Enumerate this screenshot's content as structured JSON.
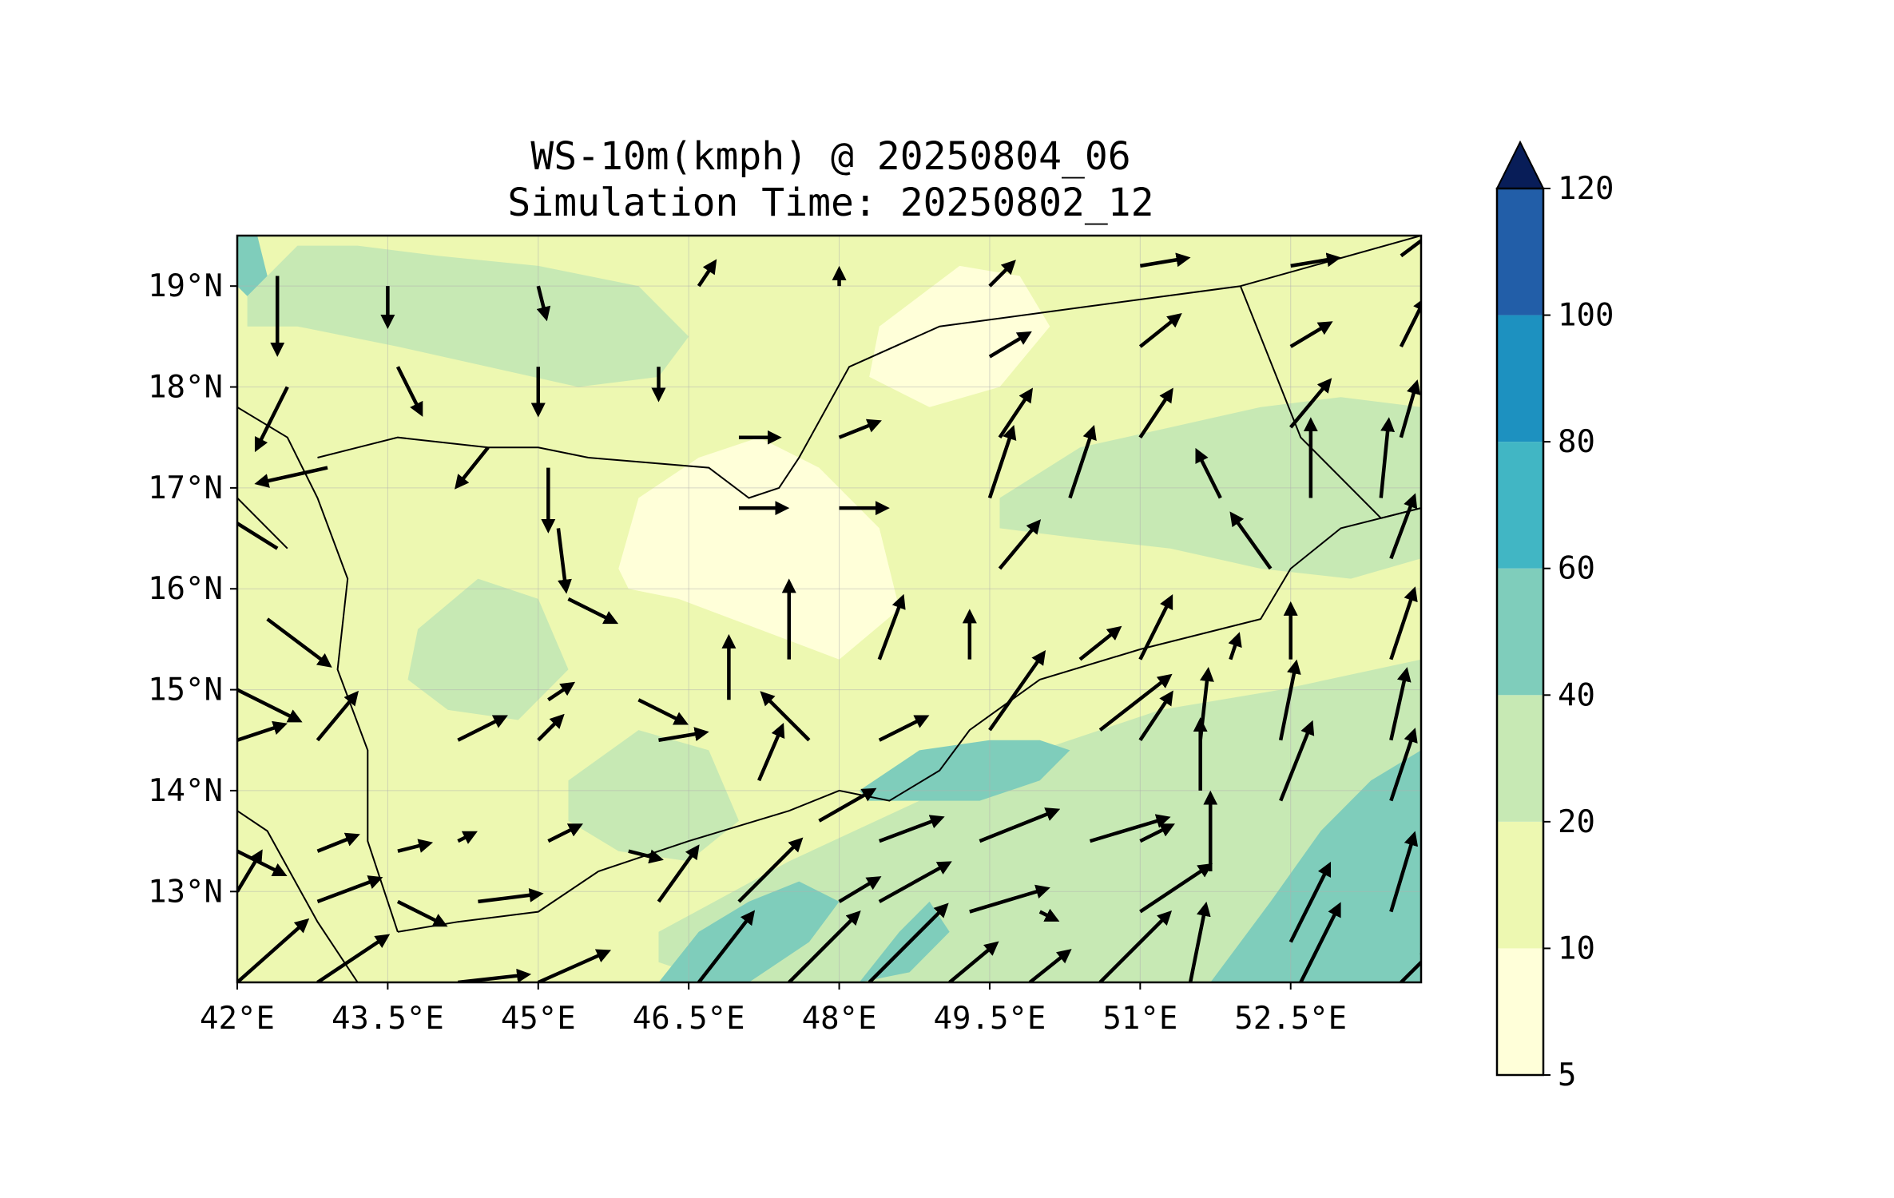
{
  "title": {
    "line1": "WS-10m(kmph) @ 20250804_06",
    "line2": "Simulation Time: 20250802_12"
  },
  "map": {
    "lon_range": [
      42.0,
      53.8
    ],
    "lat_range": [
      12.1,
      19.5
    ],
    "x_ticks": [
      {
        "value": 42.0,
        "label": "42°E"
      },
      {
        "value": 43.5,
        "label": "43.5°E"
      },
      {
        "value": 45.0,
        "label": "45°E"
      },
      {
        "value": 46.5,
        "label": "46.5°E"
      },
      {
        "value": 48.0,
        "label": "48°E"
      },
      {
        "value": 49.5,
        "label": "49.5°E"
      },
      {
        "value": 51.0,
        "label": "51°E"
      },
      {
        "value": 52.5,
        "label": "52.5°E"
      }
    ],
    "y_ticks": [
      {
        "value": 13,
        "label": "13°N"
      },
      {
        "value": 14,
        "label": "14°N"
      },
      {
        "value": 15,
        "label": "15°N"
      },
      {
        "value": 16,
        "label": "16°N"
      },
      {
        "value": 17,
        "label": "17°N"
      },
      {
        "value": 18,
        "label": "18°N"
      },
      {
        "value": 19,
        "label": "19°N"
      }
    ],
    "grid": true
  },
  "colorbar": {
    "levels": [
      5,
      10,
      20,
      40,
      60,
      80,
      100,
      120
    ],
    "labels": [
      "5",
      "10",
      "20",
      "40",
      "60",
      "80",
      "100",
      "120"
    ],
    "colors": [
      "#ffffd9",
      "#edf8b1",
      "#c7e9b4",
      "#7fcdbb",
      "#41b6c4",
      "#1d91c0",
      "#225ea8",
      "#253494"
    ],
    "extend_color": "#081d58",
    "extend": "max"
  },
  "colors": {
    "land_base": "#edf8b1",
    "calm": "#ffffd9",
    "moderate": "#c7e9b4",
    "strong": "#7fcdbb",
    "border": "#000000",
    "arrow": "#000000"
  },
  "chart_data": {
    "type": "heatmap",
    "title": "WS-10m(kmph) @ 20250804_06",
    "subtitle": "Simulation Time: 20250802_12",
    "variable": "10 m wind speed",
    "units": "kmph",
    "xlim": [
      42.0,
      53.8
    ],
    "ylim": [
      12.1,
      19.5
    ],
    "levels": [
      5,
      10,
      20,
      40,
      60,
      80,
      100,
      120
    ],
    "speed_regions": [
      {
        "range": "5-10",
        "lon": [
          45.8,
          46.0,
          46.6,
          47.2,
          47.8,
          48.4,
          48.6,
          48.0,
          47.2,
          46.4,
          45.9
        ],
        "lat": [
          16.2,
          16.9,
          17.3,
          17.5,
          17.2,
          16.6,
          15.8,
          15.3,
          15.6,
          15.9,
          16.0
        ]
      },
      {
        "range": "5-10",
        "lon": [
          48.4,
          49.2,
          49.8,
          50.1,
          49.6,
          48.9,
          48.3
        ],
        "lat": [
          18.6,
          19.2,
          19.1,
          18.6,
          18.0,
          17.8,
          18.1
        ]
      },
      {
        "range": "20-40",
        "lon": [
          42.1,
          42.6,
          43.2,
          44.0,
          45.0,
          46.0,
          46.5,
          46.2,
          45.4,
          44.5,
          43.6,
          42.6,
          42.1
        ],
        "lat": [
          18.9,
          19.4,
          19.4,
          19.3,
          19.2,
          19.0,
          18.5,
          18.1,
          18.0,
          18.2,
          18.4,
          18.6,
          18.6
        ]
      },
      {
        "range": "20-40",
        "lon": [
          49.6,
          50.4,
          51.3,
          52.2,
          53.0,
          53.8,
          53.8,
          53.1,
          52.2,
          51.3,
          50.4,
          49.6
        ],
        "lat": [
          16.9,
          17.4,
          17.6,
          17.8,
          17.9,
          17.8,
          16.3,
          16.1,
          16.2,
          16.4,
          16.5,
          16.6
        ]
      },
      {
        "range": "20-40",
        "lon": [
          43.8,
          44.4,
          45.0,
          45.3,
          44.8,
          44.1,
          43.7
        ],
        "lat": [
          15.6,
          16.1,
          15.9,
          15.2,
          14.7,
          14.8,
          15.1
        ]
      },
      {
        "range": "20-40",
        "lon": [
          45.3,
          46.0,
          46.7,
          47.0,
          46.5,
          45.8,
          45.3
        ],
        "lat": [
          14.1,
          14.6,
          14.4,
          13.7,
          13.3,
          13.4,
          13.7
        ]
      },
      {
        "range": "20-40",
        "lon": [
          46.2,
          47.5,
          48.8,
          50.0,
          51.2,
          52.4,
          53.8,
          53.8,
          52.5,
          51.0,
          49.5,
          48.0,
          46.8,
          46.2
        ],
        "lat": [
          12.6,
          13.3,
          13.9,
          14.4,
          14.8,
          15.0,
          15.3,
          12.1,
          12.1,
          12.1,
          12.1,
          12.1,
          12.1,
          12.3
        ]
      },
      {
        "range": "40-60",
        "lon": [
          46.2,
          46.6,
          47.1,
          47.6,
          48.0,
          47.7,
          47.1,
          46.4,
          46.0
        ],
        "lat": [
          12.1,
          12.6,
          12.9,
          13.1,
          12.9,
          12.5,
          12.1,
          12.1,
          12.1
        ]
      },
      {
        "range": "40-60",
        "lon": [
          48.2,
          48.6,
          48.9,
          49.1,
          48.7,
          48.2,
          47.9
        ],
        "lat": [
          12.1,
          12.6,
          12.9,
          12.6,
          12.2,
          12.1,
          12.1
        ]
      },
      {
        "range": "40-60",
        "lon": [
          48.2,
          48.8,
          49.5,
          50.0,
          50.3,
          50.0,
          49.4,
          48.8,
          48.3
        ],
        "lat": [
          14.0,
          14.4,
          14.5,
          14.5,
          14.4,
          14.1,
          13.9,
          13.9,
          13.9
        ]
      },
      {
        "range": "40-60",
        "lon": [
          51.7,
          52.3,
          52.8,
          53.3,
          53.8,
          53.8,
          53.2,
          52.5,
          51.9,
          51.7
        ],
        "lat": [
          12.1,
          12.9,
          13.6,
          14.1,
          14.4,
          12.1,
          12.1,
          12.1,
          12.1,
          12.1
        ]
      },
      {
        "range": "40-60",
        "lon": [
          42.0,
          42.2,
          42.3,
          42.1,
          42.0
        ],
        "lat": [
          19.5,
          19.5,
          19.1,
          18.9,
          19.0
        ]
      }
    ],
    "wind_vectors": [
      {
        "lon": 42.4,
        "lat": 19.1,
        "u": 0.0,
        "v": -1.0
      },
      {
        "lon": 43.5,
        "lat": 19.0,
        "u": 0.0,
        "v": -0.5
      },
      {
        "lon": 45.0,
        "lat": 19.0,
        "u": 0.1,
        "v": -0.4
      },
      {
        "lon": 46.6,
        "lat": 19.0,
        "u": 0.2,
        "v": 0.3
      },
      {
        "lon": 48.0,
        "lat": 19.0,
        "u": 0.0,
        "v": 0.2
      },
      {
        "lon": 49.5,
        "lat": 19.0,
        "u": 0.3,
        "v": 0.3
      },
      {
        "lon": 51.0,
        "lat": 19.2,
        "u": 0.6,
        "v": 0.1
      },
      {
        "lon": 52.5,
        "lat": 19.2,
        "u": 0.6,
        "v": 0.1
      },
      {
        "lon": 53.6,
        "lat": 19.3,
        "u": 0.4,
        "v": 0.3
      },
      {
        "lon": 42.5,
        "lat": 18.0,
        "u": -0.4,
        "v": -0.8
      },
      {
        "lon": 43.6,
        "lat": 18.2,
        "u": 0.3,
        "v": -0.6
      },
      {
        "lon": 45.0,
        "lat": 18.2,
        "u": 0.0,
        "v": -0.6
      },
      {
        "lon": 46.2,
        "lat": 18.2,
        "u": 0.0,
        "v": -0.4
      },
      {
        "lon": 49.5,
        "lat": 18.3,
        "u": 0.5,
        "v": 0.3
      },
      {
        "lon": 51.0,
        "lat": 18.4,
        "u": 0.5,
        "v": 0.4
      },
      {
        "lon": 52.5,
        "lat": 18.4,
        "u": 0.5,
        "v": 0.3
      },
      {
        "lon": 53.6,
        "lat": 18.4,
        "u": 0.3,
        "v": 0.6
      },
      {
        "lon": 42.9,
        "lat": 17.2,
        "u": -0.9,
        "v": -0.2
      },
      {
        "lon": 44.5,
        "lat": 17.4,
        "u": -0.4,
        "v": -0.5
      },
      {
        "lon": 45.1,
        "lat": 17.2,
        "u": 0.0,
        "v": -0.8
      },
      {
        "lon": 47.0,
        "lat": 17.5,
        "u": 0.5,
        "v": 0.0
      },
      {
        "lon": 48.0,
        "lat": 17.5,
        "u": 0.5,
        "v": 0.2
      },
      {
        "lon": 49.6,
        "lat": 17.5,
        "u": 0.4,
        "v": 0.6
      },
      {
        "lon": 51.0,
        "lat": 17.5,
        "u": 0.4,
        "v": 0.6
      },
      {
        "lon": 52.5,
        "lat": 17.6,
        "u": 0.5,
        "v": 0.6
      },
      {
        "lon": 53.6,
        "lat": 17.5,
        "u": 0.2,
        "v": 0.7
      },
      {
        "lon": 49.5,
        "lat": 16.9,
        "u": 0.3,
        "v": 0.9
      },
      {
        "lon": 50.3,
        "lat": 16.9,
        "u": 0.3,
        "v": 0.9
      },
      {
        "lon": 51.8,
        "lat": 16.9,
        "u": -0.3,
        "v": 0.6
      },
      {
        "lon": 52.7,
        "lat": 16.9,
        "u": 0.0,
        "v": 1.0
      },
      {
        "lon": 53.4,
        "lat": 16.9,
        "u": 0.1,
        "v": 1.0
      },
      {
        "lon": 42.4,
        "lat": 16.4,
        "u": -0.8,
        "v": 0.5
      },
      {
        "lon": 45.2,
        "lat": 16.6,
        "u": 0.1,
        "v": -0.8
      },
      {
        "lon": 47.0,
        "lat": 16.8,
        "u": 0.6,
        "v": 0.0
      },
      {
        "lon": 48.0,
        "lat": 16.8,
        "u": 0.6,
        "v": 0.0
      },
      {
        "lon": 49.6,
        "lat": 16.2,
        "u": 0.5,
        "v": 0.6
      },
      {
        "lon": 52.3,
        "lat": 16.2,
        "u": -0.5,
        "v": 0.7
      },
      {
        "lon": 53.5,
        "lat": 16.3,
        "u": 0.3,
        "v": 0.8
      },
      {
        "lon": 42.3,
        "lat": 15.7,
        "u": 0.8,
        "v": -0.6
      },
      {
        "lon": 45.3,
        "lat": 15.9,
        "u": 0.6,
        "v": -0.3
      },
      {
        "lon": 47.5,
        "lat": 15.3,
        "u": 0.0,
        "v": 1.0
      },
      {
        "lon": 48.4,
        "lat": 15.3,
        "u": 0.3,
        "v": 0.8
      },
      {
        "lon": 49.3,
        "lat": 15.3,
        "u": 0.0,
        "v": 0.6
      },
      {
        "lon": 50.4,
        "lat": 15.3,
        "u": 0.5,
        "v": 0.4
      },
      {
        "lon": 51.0,
        "lat": 15.3,
        "u": 0.4,
        "v": 0.8
      },
      {
        "lon": 51.9,
        "lat": 15.3,
        "u": 0.1,
        "v": 0.3
      },
      {
        "lon": 52.5,
        "lat": 15.3,
        "u": 0.0,
        "v": 0.7
      },
      {
        "lon": 53.5,
        "lat": 15.3,
        "u": 0.3,
        "v": 0.9
      },
      {
        "lon": 42.0,
        "lat": 15.0,
        "u": 0.8,
        "v": -0.4
      },
      {
        "lon": 45.1,
        "lat": 14.9,
        "u": 0.3,
        "v": 0.2
      },
      {
        "lon": 46.0,
        "lat": 14.9,
        "u": 0.6,
        "v": -0.3
      },
      {
        "lon": 46.9,
        "lat": 14.9,
        "u": 0.0,
        "v": 0.8
      },
      {
        "lon": 47.7,
        "lat": 14.5,
        "u": -0.6,
        "v": 0.6
      },
      {
        "lon": 49.5,
        "lat": 14.6,
        "u": 0.7,
        "v": 1.0
      },
      {
        "lon": 50.6,
        "lat": 14.6,
        "u": 0.9,
        "v": 0.7
      },
      {
        "lon": 51.0,
        "lat": 14.5,
        "u": 0.4,
        "v": 0.6
      },
      {
        "lon": 51.6,
        "lat": 14.5,
        "u": 0.1,
        "v": 0.9
      },
      {
        "lon": 52.4,
        "lat": 14.5,
        "u": 0.2,
        "v": 1.0
      },
      {
        "lon": 53.5,
        "lat": 14.5,
        "u": 0.2,
        "v": 0.9
      },
      {
        "lon": 42.0,
        "lat": 14.5,
        "u": 0.6,
        "v": 0.2
      },
      {
        "lon": 42.8,
        "lat": 14.5,
        "u": 0.5,
        "v": 0.6
      },
      {
        "lon": 44.2,
        "lat": 14.5,
        "u": 0.6,
        "v": 0.3
      },
      {
        "lon": 45.0,
        "lat": 14.5,
        "u": 0.3,
        "v": 0.3
      },
      {
        "lon": 46.2,
        "lat": 14.5,
        "u": 0.6,
        "v": 0.1
      },
      {
        "lon": 47.2,
        "lat": 14.1,
        "u": 0.3,
        "v": 0.7
      },
      {
        "lon": 48.4,
        "lat": 14.5,
        "u": 0.6,
        "v": 0.3
      },
      {
        "lon": 51.6,
        "lat": 14.0,
        "u": 0.0,
        "v": 0.9
      },
      {
        "lon": 52.4,
        "lat": 13.9,
        "u": 0.4,
        "v": 1.0
      },
      {
        "lon": 53.5,
        "lat": 13.9,
        "u": 0.3,
        "v": 0.9
      },
      {
        "lon": 42.0,
        "lat": 13.4,
        "u": 0.6,
        "v": -0.3
      },
      {
        "lon": 42.8,
        "lat": 13.4,
        "u": 0.5,
        "v": 0.2
      },
      {
        "lon": 43.6,
        "lat": 13.4,
        "u": 0.4,
        "v": 0.1
      },
      {
        "lon": 44.2,
        "lat": 13.5,
        "u": 0.2,
        "v": 0.1
      },
      {
        "lon": 45.1,
        "lat": 13.5,
        "u": 0.4,
        "v": 0.2
      },
      {
        "lon": 45.9,
        "lat": 13.4,
        "u": 0.4,
        "v": -0.1
      },
      {
        "lon": 47.8,
        "lat": 13.7,
        "u": 0.7,
        "v": 0.4
      },
      {
        "lon": 48.4,
        "lat": 13.5,
        "u": 0.8,
        "v": 0.3
      },
      {
        "lon": 49.4,
        "lat": 13.5,
        "u": 1.0,
        "v": 0.4
      },
      {
        "lon": 50.5,
        "lat": 13.5,
        "u": 1.0,
        "v": 0.3
      },
      {
        "lon": 51.0,
        "lat": 13.5,
        "u": 0.4,
        "v": 0.2
      },
      {
        "lon": 51.7,
        "lat": 13.2,
        "u": 0.0,
        "v": 1.0
      },
      {
        "lon": 42.0,
        "lat": 13.0,
        "u": 0.3,
        "v": 0.5
      },
      {
        "lon": 42.8,
        "lat": 12.9,
        "u": 0.8,
        "v": 0.3
      },
      {
        "lon": 43.6,
        "lat": 12.9,
        "u": 0.6,
        "v": -0.3
      },
      {
        "lon": 44.4,
        "lat": 12.9,
        "u": 0.8,
        "v": 0.1
      },
      {
        "lon": 46.2,
        "lat": 12.9,
        "u": 0.5,
        "v": 0.7
      },
      {
        "lon": 47.0,
        "lat": 12.9,
        "u": 0.8,
        "v": 0.8
      },
      {
        "lon": 48.0,
        "lat": 12.9,
        "u": 0.5,
        "v": 0.3
      },
      {
        "lon": 48.4,
        "lat": 12.9,
        "u": 0.9,
        "v": 0.5
      },
      {
        "lon": 49.3,
        "lat": 12.8,
        "u": 1.0,
        "v": 0.3
      },
      {
        "lon": 50.0,
        "lat": 12.8,
        "u": 0.2,
        "v": -0.1
      },
      {
        "lon": 51.0,
        "lat": 12.8,
        "u": 0.9,
        "v": 0.6
      },
      {
        "lon": 52.5,
        "lat": 12.5,
        "u": 0.5,
        "v": 1.0
      },
      {
        "lon": 53.5,
        "lat": 12.8,
        "u": 0.3,
        "v": 1.0
      },
      {
        "lon": 42.0,
        "lat": 12.1,
        "u": 0.9,
        "v": 0.8
      },
      {
        "lon": 42.8,
        "lat": 12.1,
        "u": 0.9,
        "v": 0.6
      },
      {
        "lon": 44.2,
        "lat": 12.1,
        "u": 0.9,
        "v": 0.1
      },
      {
        "lon": 45.0,
        "lat": 12.1,
        "u": 0.9,
        "v": 0.4
      },
      {
        "lon": 46.6,
        "lat": 12.1,
        "u": 0.7,
        "v": 0.9
      },
      {
        "lon": 47.5,
        "lat": 12.1,
        "u": 0.9,
        "v": 0.9
      },
      {
        "lon": 48.3,
        "lat": 12.1,
        "u": 1.0,
        "v": 1.0
      },
      {
        "lon": 49.1,
        "lat": 12.1,
        "u": 0.6,
        "v": 0.5
      },
      {
        "lon": 49.9,
        "lat": 12.1,
        "u": 0.5,
        "v": 0.4
      },
      {
        "lon": 50.6,
        "lat": 12.1,
        "u": 0.9,
        "v": 0.9
      },
      {
        "lon": 51.5,
        "lat": 12.1,
        "u": 0.2,
        "v": 1.0
      },
      {
        "lon": 52.6,
        "lat": 12.1,
        "u": 0.5,
        "v": 1.0
      },
      {
        "lon": 53.6,
        "lat": 12.1,
        "u": 0.4,
        "v": 0.4
      }
    ],
    "borders": [
      {
        "name": "coast-red-sea",
        "lon": [
          42.0,
          42.5,
          42.8,
          43.1,
          43.0,
          43.3,
          43.3,
          43.5,
          43.6
        ],
        "lat": [
          17.8,
          17.5,
          16.9,
          16.1,
          15.2,
          14.4,
          13.5,
          12.9,
          12.6
        ]
      },
      {
        "name": "coast-gulf-of-aden",
        "lon": [
          43.6,
          44.2,
          45.0,
          45.6,
          46.5,
          47.5,
          48.0,
          48.5,
          49.0,
          49.3,
          50.0,
          51.0,
          52.2,
          52.5,
          53.0,
          53.8
        ],
        "lat": [
          12.6,
          12.7,
          12.8,
          13.2,
          13.5,
          13.8,
          14.0,
          13.9,
          14.2,
          14.6,
          15.1,
          15.4,
          15.7,
          16.2,
          16.6,
          16.8
        ]
      },
      {
        "name": "border-saudi-yemen",
        "lon": [
          42.8,
          43.2,
          43.6,
          44.5,
          45.0,
          45.5,
          46.7,
          47.1,
          47.4,
          47.6,
          48.1,
          49.0,
          50.5,
          52.0
        ],
        "lat": [
          17.3,
          17.4,
          17.5,
          17.4,
          17.4,
          17.3,
          17.2,
          16.9,
          17.0,
          17.3,
          18.2,
          18.6,
          18.8,
          19.0
        ]
      },
      {
        "name": "border-oman",
        "lon": [
          52.0,
          53.8
        ],
        "lat": [
          19.0,
          19.5
        ]
      },
      {
        "name": "border-oman-yemen",
        "lon": [
          52.0,
          52.6,
          53.4,
          53.8
        ],
        "lat": [
          19.0,
          17.5,
          16.7,
          16.8
        ]
      },
      {
        "name": "coast-horn",
        "lon": [
          42.0,
          42.3,
          42.8,
          43.2
        ],
        "lat": [
          13.8,
          13.6,
          12.7,
          12.1
        ]
      },
      {
        "name": "coast-eritrea",
        "lon": [
          42.0,
          42.5
        ],
        "lat": [
          16.9,
          16.4
        ]
      }
    ]
  }
}
